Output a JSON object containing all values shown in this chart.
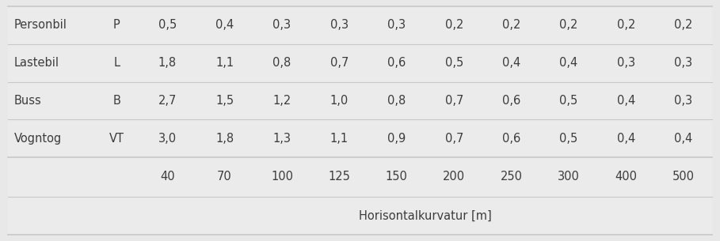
{
  "title": "Horisontalkurvatur [m]",
  "col_headers": [
    "40",
    "70",
    "100",
    "125",
    "150",
    "200",
    "250",
    "300",
    "400",
    "500"
  ],
  "rows": [
    [
      "Vogntog",
      "VT",
      "3,0",
      "1,8",
      "1,3",
      "1,1",
      "0,9",
      "0,7",
      "0,6",
      "0,5",
      "0,4",
      "0,4"
    ],
    [
      "Buss",
      "B",
      "2,7",
      "1,5",
      "1,2",
      "1,0",
      "0,8",
      "0,7",
      "0,6",
      "0,5",
      "0,4",
      "0,3"
    ],
    [
      "Lastebil",
      "L",
      "1,8",
      "1,1",
      "0,8",
      "0,7",
      "0,6",
      "0,5",
      "0,4",
      "0,4",
      "0,3",
      "0,3"
    ],
    [
      "Personbil",
      "P",
      "0,5",
      "0,4",
      "0,3",
      "0,3",
      "0,3",
      "0,2",
      "0,2",
      "0,2",
      "0,2",
      "0,2"
    ]
  ],
  "bg_color": "#e8e8e8",
  "table_bg": "#ebebeb",
  "text_color": "#3c3c3c",
  "line_color": "#c8c8c8",
  "title_fontsize": 10.5,
  "cell_fontsize": 10.5,
  "fig_width": 9.09,
  "fig_height": 3.05,
  "dpi": 100
}
